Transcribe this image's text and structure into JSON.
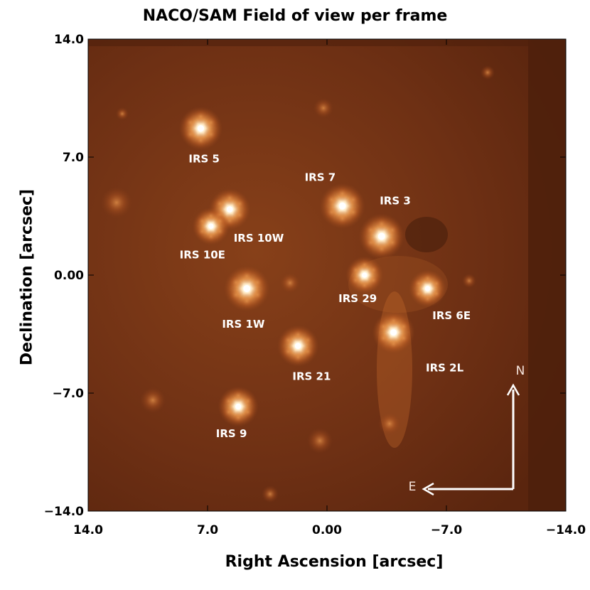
{
  "figure": {
    "title": "NACO/SAM Field of view per frame",
    "xlabel": "Right Ascension [arcsec]",
    "ylabel": "Declination [arcsec]",
    "x_range": [
      14.0,
      -14.0
    ],
    "y_range": [
      -14.0,
      14.0
    ],
    "x_ticks": [
      "14.0",
      "7.0",
      "0.00",
      "−7.0",
      "−14.0"
    ],
    "y_ticks": [
      "14.0",
      "7.0",
      "0.00",
      "−7.0",
      "−14.0"
    ],
    "colors": {
      "background": "#6a2e12",
      "star": "#ffcc80",
      "label": "#ffffff"
    }
  },
  "stars": [
    {
      "name": "IRS 5",
      "ra": 7.4,
      "dec": 8.7,
      "bright": 0.9,
      "label_ra": 7.2,
      "label_dec": 6.9
    },
    {
      "name": "IRS 7",
      "ra": -0.9,
      "dec": 4.1,
      "bright": 1.0,
      "label_ra": 0.4,
      "label_dec": 5.8
    },
    {
      "name": "IRS 3",
      "ra": -3.2,
      "dec": 2.3,
      "bright": 1.0,
      "label_ra": -4.0,
      "label_dec": 4.4
    },
    {
      "name": "IRS 10W",
      "ra": 5.7,
      "dec": 3.9,
      "bright": 0.8,
      "label_ra": 4.0,
      "label_dec": 2.2
    },
    {
      "name": "IRS 10E",
      "ra": 6.8,
      "dec": 2.9,
      "bright": 0.6,
      "label_ra": 7.3,
      "label_dec": 1.2
    },
    {
      "name": "IRS 1W",
      "ra": 4.7,
      "dec": -0.8,
      "bright": 1.0,
      "label_ra": 4.9,
      "label_dec": -2.9
    },
    {
      "name": "IRS 29",
      "ra": -2.2,
      "dec": 0.0,
      "bright": 0.6,
      "label_ra": -1.8,
      "label_dec": -1.4
    },
    {
      "name": "IRS 6E",
      "ra": -5.9,
      "dec": -0.8,
      "bright": 0.6,
      "label_ra": -7.3,
      "label_dec": -2.4
    },
    {
      "name": "IRS 21",
      "ra": 1.7,
      "dec": -4.2,
      "bright": 0.8,
      "label_ra": 0.9,
      "label_dec": -6.0
    },
    {
      "name": "IRS 2L",
      "ra": -3.9,
      "dec": -3.4,
      "bright": 0.85,
      "label_ra": -6.9,
      "label_dec": -5.5
    },
    {
      "name": "IRS 9",
      "ra": 5.2,
      "dec": -7.8,
      "bright": 0.75,
      "label_ra": 5.6,
      "label_dec": -9.4
    }
  ],
  "compass": {
    "north": "N",
    "east": "E"
  }
}
